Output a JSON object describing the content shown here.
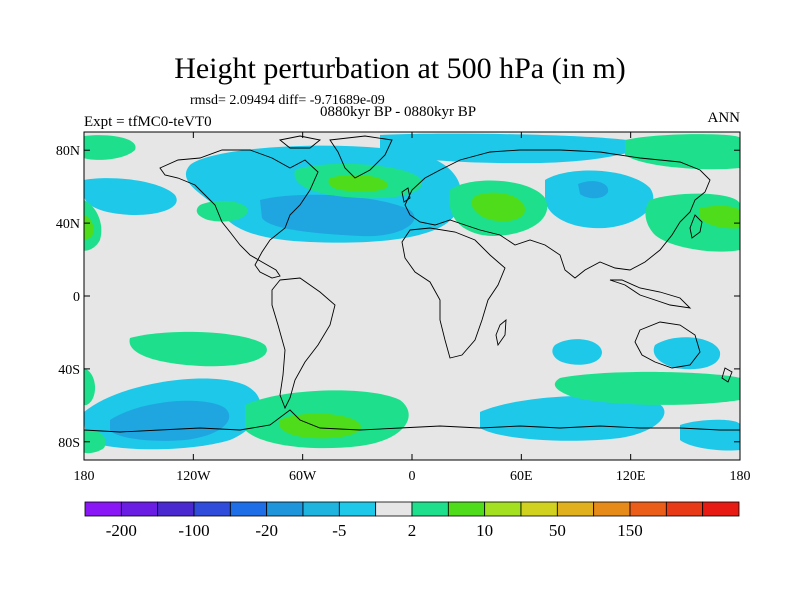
{
  "header": {
    "title": "Height perturbation at 500 hPa (in m)",
    "stats": "rmsd= 2.09494 diff= -9.71689e-09",
    "period": "0880kyr BP - 0880kyr BP",
    "experiment": "Expt = tfMC0-teVT0",
    "season": "ANN"
  },
  "map": {
    "projection": "cylindrical-equidistant",
    "lon_range": [
      -180,
      180
    ],
    "lat_range": [
      -90,
      90
    ],
    "background_color": "#e6e6e6",
    "lon_tick_labels": [
      "180",
      "120W",
      "60W",
      "0",
      "60E",
      "120E",
      "180"
    ],
    "lat_tick_labels": [
      "80N",
      "40N",
      "0",
      "40S",
      "80S"
    ]
  },
  "colorbar": {
    "colors": [
      "#8a17f5",
      "#6a1de3",
      "#4b29d1",
      "#2f4cdb",
      "#1e6ee8",
      "#1f95db",
      "#1fb3e0",
      "#1ec8e8",
      "#e6e6e6",
      "#1ee08c",
      "#4fdc1a",
      "#a3e01f",
      "#d1d11f",
      "#e0b01f",
      "#e68a1a",
      "#eb5e19",
      "#e83a16",
      "#e81a14"
    ],
    "labels": [
      {
        "text": "-200",
        "after_box": 1
      },
      {
        "text": "-100",
        "after_box": 3
      },
      {
        "text": "-20",
        "after_box": 5
      },
      {
        "text": "-5",
        "after_box": 7
      },
      {
        "text": "2",
        "after_box": 9
      },
      {
        "text": "10",
        "after_box": 11
      },
      {
        "text": "50",
        "after_box": 13
      },
      {
        "text": "150",
        "after_box": 15
      }
    ]
  }
}
